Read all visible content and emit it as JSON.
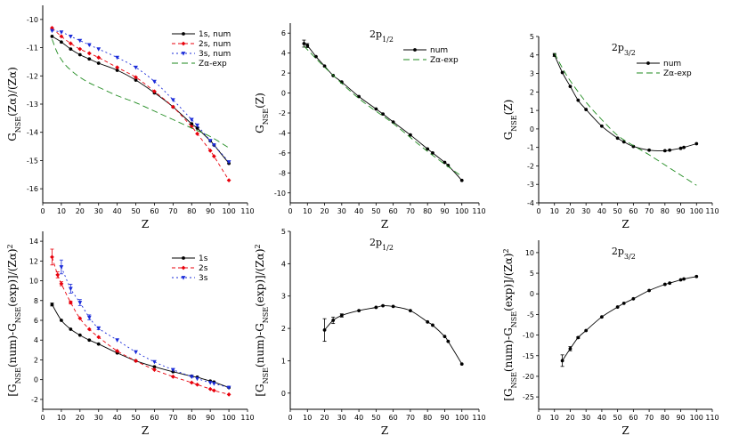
{
  "chart_data": [
    {
      "type": "line",
      "title": "",
      "xlabel": "Z",
      "ylabel": "G_NSE(Zα)/(Zα)",
      "ylabel_parts": {
        "prefix": "G",
        "sub": "NSE",
        "rest": "(Zα)/(Zα)"
      },
      "xlim": [
        0,
        110
      ],
      "ylim": [
        -16.5,
        -9.5
      ],
      "xticks": [
        0,
        10,
        20,
        30,
        40,
        50,
        60,
        70,
        80,
        90,
        100,
        110
      ],
      "xtick_labels": [
        "0",
        "10",
        "20",
        "30",
        "40",
        "50",
        "60",
        "70",
        "80",
        "90",
        "100",
        "110"
      ],
      "yticks": [
        -16,
        -15,
        -14,
        -13,
        -12,
        -11,
        -10
      ],
      "ytick_labels": [
        "-16",
        "-15",
        "-14",
        "-13",
        "-12",
        "-11",
        "-10"
      ],
      "legend": "top-right",
      "series": [
        {
          "name": "1s, num",
          "color": "#000000",
          "dash": "",
          "marker": "circle",
          "x": [
            5,
            10,
            15,
            20,
            25,
            30,
            40,
            50,
            60,
            70,
            80,
            83,
            90,
            92,
            100
          ],
          "y": [
            -10.6,
            -10.8,
            -11.05,
            -11.25,
            -11.4,
            -11.55,
            -11.8,
            -12.15,
            -12.6,
            -13.1,
            -13.7,
            -13.85,
            -14.3,
            -14.45,
            -15.1
          ]
        },
        {
          "name": "2s, num",
          "color": "#e8000b",
          "dash": "4,3",
          "marker": "diamond",
          "x": [
            5,
            10,
            15,
            20,
            25,
            30,
            40,
            50,
            60,
            70,
            80,
            83,
            90,
            92,
            100
          ],
          "y": [
            -10.3,
            -10.6,
            -10.85,
            -11.05,
            -11.2,
            -11.35,
            -11.7,
            -12.05,
            -12.55,
            -13.1,
            -13.8,
            -14.05,
            -14.65,
            -14.85,
            -15.7
          ]
        },
        {
          "name": "3s, num",
          "color": "#1a2bd9",
          "dash": "2,3",
          "marker": "triangle-down",
          "x": [
            5,
            10,
            15,
            20,
            25,
            30,
            40,
            50,
            60,
            70,
            80,
            83,
            90,
            92,
            100
          ],
          "y": [
            -10.4,
            -10.45,
            -10.6,
            -10.75,
            -10.9,
            -11.05,
            -11.35,
            -11.7,
            -12.2,
            -12.85,
            -13.55,
            -13.75,
            -14.3,
            -14.45,
            -15.05
          ]
        },
        {
          "name": "Zα-exp",
          "color": "#1e8a1e",
          "dash": "7,4",
          "marker": "none",
          "x": [
            5,
            8,
            12,
            16,
            20,
            25,
            30,
            40,
            50,
            60,
            70,
            80,
            90,
            100
          ],
          "y": [
            -10.7,
            -11.2,
            -11.6,
            -11.85,
            -12.05,
            -12.25,
            -12.4,
            -12.7,
            -12.95,
            -13.25,
            -13.55,
            -13.85,
            -14.15,
            -14.55
          ]
        }
      ]
    },
    {
      "type": "line",
      "title": "2p_{1/2}",
      "title_parts": {
        "main": "2p",
        "sub": "1/2"
      },
      "xlabel": "Z",
      "ylabel": "G_NSE(Z)",
      "ylabel_parts": {
        "prefix": "G",
        "sub": "NSE",
        "rest": "(Z)"
      },
      "xlim": [
        0,
        110
      ],
      "ylim": [
        -11,
        7
      ],
      "xticks": [
        0,
        10,
        20,
        30,
        40,
        50,
        60,
        70,
        80,
        90,
        100,
        110
      ],
      "xtick_labels": [
        "0",
        "10",
        "20",
        "30",
        "40",
        "50",
        "60",
        "70",
        "80",
        "90",
        "100",
        "110"
      ],
      "yticks": [
        -10,
        -8,
        -6,
        -4,
        -2,
        0,
        2,
        4,
        6
      ],
      "ytick_labels": [
        "-10",
        "-8",
        "-6",
        "-4",
        "-2",
        "0",
        "2",
        "4",
        "6"
      ],
      "legend": "top-right",
      "series": [
        {
          "name": "num",
          "color": "#000000",
          "dash": "",
          "marker": "circle",
          "x": [
            8,
            10,
            15,
            20,
            25,
            30,
            40,
            50,
            54,
            60,
            70,
            80,
            83,
            90,
            92,
            100
          ],
          "y": [
            4.95,
            4.75,
            3.65,
            2.7,
            1.75,
            1.1,
            -0.35,
            -1.6,
            -2.1,
            -2.9,
            -4.2,
            -5.6,
            -6.0,
            -6.95,
            -7.25,
            -8.75
          ],
          "yerr": [
            0.35,
            0.2,
            0,
            0,
            0,
            0,
            0,
            0,
            0,
            0,
            0,
            0,
            0,
            0,
            0,
            0
          ]
        },
        {
          "name": "Zα-exp",
          "color": "#1e8a1e",
          "dash": "7,4",
          "marker": "none",
          "x": [
            8,
            20,
            40,
            60,
            80,
            100
          ],
          "y": [
            4.7,
            2.6,
            -0.55,
            -3.05,
            -5.85,
            -8.35
          ]
        }
      ]
    },
    {
      "type": "line",
      "title": "2p_{3/2}",
      "title_parts": {
        "main": "2p",
        "sub": "3/2"
      },
      "xlabel": "Z",
      "ylabel": "G_NSE(Z)",
      "ylabel_parts": {
        "prefix": "G",
        "sub": "NSE",
        "rest": "(Z)"
      },
      "xlim": [
        0,
        110
      ],
      "ylim": [
        -4,
        5
      ],
      "xticks": [
        0,
        10,
        20,
        30,
        40,
        50,
        60,
        70,
        80,
        90,
        100,
        110
      ],
      "xtick_labels": [
        "0",
        "10",
        "20",
        "30",
        "40",
        "50",
        "60",
        "70",
        "80",
        "90",
        "100",
        "110"
      ],
      "yticks": [
        -4,
        -3,
        -2,
        -1,
        0,
        1,
        2,
        3,
        4,
        5
      ],
      "ytick_labels": [
        "-4",
        "-3",
        "-2",
        "-1",
        "0",
        "1",
        "2",
        "3",
        "4",
        "5"
      ],
      "legend": "top-right",
      "series": [
        {
          "name": "num",
          "color": "#000000",
          "dash": "",
          "marker": "circle",
          "x": [
            10,
            15,
            20,
            25,
            30,
            40,
            50,
            54,
            60,
            70,
            80,
            83,
            90,
            92,
            100
          ],
          "y": [
            4.0,
            3.05,
            2.3,
            1.55,
            1.05,
            0.15,
            -0.5,
            -0.7,
            -0.95,
            -1.15,
            -1.18,
            -1.15,
            -1.05,
            -1.0,
            -0.8
          ],
          "yerr": [
            0.08,
            0,
            0,
            0,
            0,
            0,
            0,
            0,
            0,
            0,
            0,
            0,
            0,
            0,
            0
          ]
        },
        {
          "name": "Zα-exp",
          "color": "#1e8a1e",
          "dash": "7,4",
          "marker": "none",
          "x": [
            10,
            15,
            20,
            30,
            40,
            50,
            60,
            70,
            80,
            90,
            100
          ],
          "y": [
            4.1,
            3.3,
            2.6,
            1.45,
            0.5,
            -0.35,
            -0.9,
            -1.4,
            -1.95,
            -2.5,
            -3.05
          ]
        }
      ]
    },
    {
      "type": "line",
      "title": "",
      "xlabel": "Z",
      "ylabel": "[G_NSE(num)-G_NSE(exp)]/(Zα)^2",
      "ylabel_parts": {
        "a": "[G",
        "sub1": "NSE",
        "b": "(num)-G",
        "sub2": "NSE",
        "c": "(exp)]/(Zα)",
        "sup": "2"
      },
      "xlim": [
        0,
        110
      ],
      "ylim": [
        -3,
        15
      ],
      "xticks": [
        0,
        10,
        20,
        30,
        40,
        50,
        60,
        70,
        80,
        90,
        100,
        110
      ],
      "xtick_labels": [
        "0",
        "10",
        "20",
        "30",
        "40",
        "50",
        "60",
        "70",
        "80",
        "90",
        "100",
        "110"
      ],
      "yticks": [
        -2,
        0,
        2,
        4,
        6,
        8,
        10,
        12,
        14
      ],
      "ytick_labels": [
        "-2",
        "0",
        "2",
        "4",
        "6",
        "8",
        "10",
        "12",
        "14"
      ],
      "legend": "top-right",
      "series": [
        {
          "name": "1s",
          "color": "#000000",
          "dash": "",
          "marker": "circle",
          "x": [
            5,
            10,
            15,
            20,
            25,
            30,
            40,
            50,
            60,
            70,
            80,
            83,
            90,
            92,
            100
          ],
          "y": [
            7.6,
            6.0,
            5.1,
            4.5,
            4.0,
            3.6,
            2.7,
            1.9,
            1.3,
            0.8,
            0.35,
            0.25,
            -0.15,
            -0.25,
            -0.8
          ],
          "yerr": [
            0.15,
            0,
            0,
            0,
            0,
            0,
            0,
            0,
            0,
            0,
            0,
            0,
            0,
            0,
            0
          ]
        },
        {
          "name": "2s",
          "color": "#e8000b",
          "dash": "4,3",
          "marker": "diamond",
          "x": [
            5,
            8,
            10,
            15,
            20,
            25,
            30,
            40,
            50,
            60,
            70,
            80,
            83,
            90,
            92,
            100
          ],
          "y": [
            12.4,
            10.6,
            9.7,
            7.8,
            6.2,
            5.1,
            4.3,
            2.9,
            1.9,
            1.0,
            0.3,
            -0.3,
            -0.5,
            -0.95,
            -1.1,
            -1.5
          ],
          "yerr": [
            0.8,
            0.3,
            0.2,
            0.15,
            0,
            0,
            0,
            0,
            0,
            0,
            0,
            0,
            0,
            0,
            0,
            0
          ]
        },
        {
          "name": "3s",
          "color": "#1a2bd9",
          "dash": "2,3",
          "marker": "triangle-down",
          "x": [
            10,
            15,
            20,
            25,
            30,
            40,
            50,
            60,
            70,
            80,
            83,
            90,
            92,
            100
          ],
          "y": [
            11.4,
            9.2,
            7.8,
            6.3,
            5.2,
            4.0,
            2.8,
            1.8,
            1.0,
            0.3,
            0.1,
            -0.3,
            -0.4,
            -0.8
          ],
          "yerr": [
            0.7,
            0.45,
            0.3,
            0.25,
            0.15,
            0,
            0,
            0,
            0,
            0,
            0,
            0,
            0,
            0
          ]
        }
      ]
    },
    {
      "type": "line",
      "title": "2p_{1/2}",
      "title_parts": {
        "main": "2p",
        "sub": "1/2"
      },
      "xlabel": "Z",
      "ylabel": "[G_NSE(num)-G_NSE(exp)]/(Zα)^2",
      "ylabel_parts": {
        "a": "[G",
        "sub1": "NSE",
        "b": "(num)-G",
        "sub2": "NSE",
        "c": "(exp)]/(Zα)",
        "sup": "2"
      },
      "xlim": [
        0,
        110
      ],
      "ylim": [
        -0.5,
        5
      ],
      "xticks": [
        0,
        10,
        20,
        30,
        40,
        50,
        60,
        70,
        80,
        90,
        100,
        110
      ],
      "xtick_labels": [
        "0",
        "10",
        "20",
        "30",
        "40",
        "50",
        "60",
        "70",
        "80",
        "90",
        "100",
        "110"
      ],
      "yticks": [
        0,
        1,
        2,
        3,
        4,
        5
      ],
      "ytick_labels": [
        "0",
        "1",
        "2",
        "3",
        "4",
        "5"
      ],
      "legend": "none",
      "series": [
        {
          "name": "",
          "color": "#000000",
          "dash": "",
          "marker": "circle",
          "x": [
            20,
            25,
            30,
            40,
            50,
            54,
            60,
            70,
            80,
            83,
            90,
            92,
            100
          ],
          "y": [
            1.95,
            2.25,
            2.4,
            2.55,
            2.65,
            2.7,
            2.68,
            2.55,
            2.2,
            2.1,
            1.75,
            1.6,
            0.9
          ],
          "yerr": [
            0.35,
            0.1,
            0.05,
            0,
            0,
            0,
            0,
            0,
            0,
            0,
            0,
            0,
            0
          ]
        }
      ]
    },
    {
      "type": "line",
      "title": "2p_{3/2}",
      "title_parts": {
        "main": "2p",
        "sub": "3/2"
      },
      "xlabel": "Z",
      "ylabel": "[G_NSE(num)-G_NSE(exp)]/(Zα)^2",
      "ylabel_parts": {
        "a": "[G",
        "sub1": "NSE",
        "b": "(num)-G",
        "sub2": "NSE",
        "c": "(exp)]/(Zα)",
        "sup": "2"
      },
      "xlim": [
        0,
        110
      ],
      "ylim": [
        -28,
        13
      ],
      "xticks": [
        0,
        10,
        20,
        30,
        40,
        50,
        60,
        70,
        80,
        90,
        100,
        110
      ],
      "xtick_labels": [
        "0",
        "10",
        "20",
        "30",
        "40",
        "50",
        "60",
        "70",
        "80",
        "90",
        "100",
        "110"
      ],
      "yticks": [
        -25,
        -20,
        -15,
        -10,
        -5,
        0,
        5,
        10
      ],
      "ytick_labels": [
        "-25",
        "-20",
        "-15",
        "-10",
        "-5",
        "0",
        "5",
        "10"
      ],
      "legend": "none",
      "series": [
        {
          "name": "",
          "color": "#000000",
          "dash": "",
          "marker": "circle",
          "x": [
            15,
            20,
            25,
            30,
            40,
            50,
            54,
            60,
            70,
            80,
            83,
            90,
            92,
            100
          ],
          "y": [
            -16.2,
            -13.3,
            -10.6,
            -8.9,
            -5.6,
            -3.2,
            -2.3,
            -1.2,
            0.8,
            2.3,
            2.6,
            3.4,
            3.6,
            4.2
          ],
          "yerr": [
            1.4,
            0.5,
            0.2,
            0,
            0,
            0,
            0,
            0,
            0,
            0,
            0,
            0,
            0,
            0
          ]
        }
      ]
    }
  ]
}
